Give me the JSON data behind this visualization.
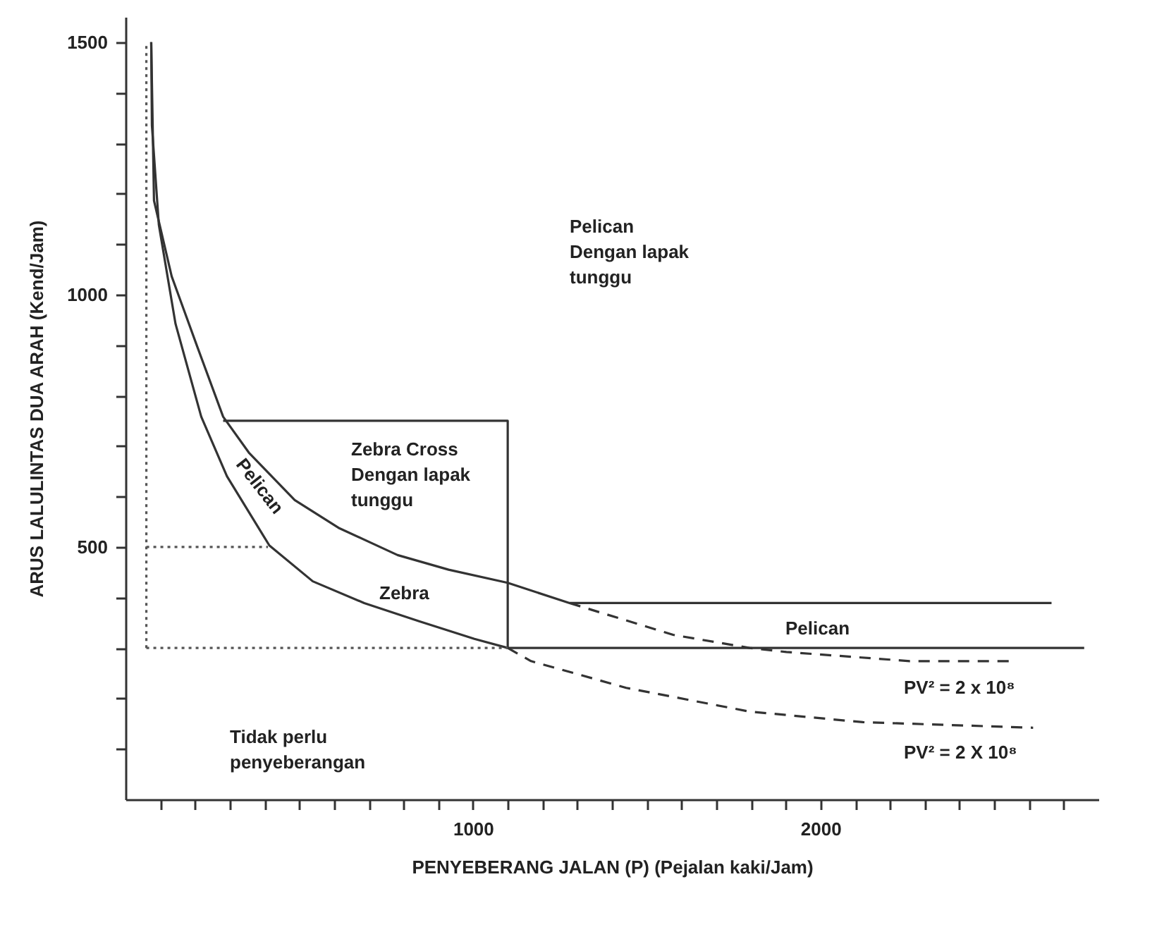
{
  "chart_data": {
    "type": "line",
    "xlabel": "PENYEBERANG JALAN (P) (Pejalan kaki/Jam)",
    "ylabel": "ARUS LALULINTAS DUA ARAH (Kend/Jam)",
    "xlim": [
      0,
      2800
    ],
    "ylim": [
      0,
      1550
    ],
    "xticks": [
      {
        "value": 100,
        "label": null
      },
      {
        "value": 200,
        "label": null
      },
      {
        "value": 300,
        "label": null
      },
      {
        "value": 400,
        "label": null
      },
      {
        "value": 500,
        "label": null
      },
      {
        "value": 600,
        "label": null
      },
      {
        "value": 700,
        "label": null
      },
      {
        "value": 800,
        "label": null
      },
      {
        "value": 900,
        "label": null
      },
      1000,
      {
        "value": 1100,
        "label": null
      },
      {
        "value": 1200,
        "label": null
      },
      {
        "value": 1300,
        "label": null
      },
      {
        "value": 1400,
        "label": null
      },
      {
        "value": 1500,
        "label": null
      },
      {
        "value": 1600,
        "label": null
      },
      {
        "value": 1700,
        "label": null
      },
      {
        "value": 1800,
        "label": null
      },
      {
        "value": 1900,
        "label": null
      },
      2000,
      {
        "value": 2100,
        "label": null
      },
      {
        "value": 2200,
        "label": null
      },
      {
        "value": 2300,
        "label": null
      },
      {
        "value": 2400,
        "label": null
      },
      {
        "value": 2500,
        "label": null
      },
      {
        "value": 2600,
        "label": null
      },
      {
        "value": 2700,
        "label": null
      }
    ],
    "yticks": [
      {
        "value": 100,
        "label": null
      },
      {
        "value": 200,
        "label": null
      },
      {
        "value": 300,
        "label": null
      },
      {
        "value": 400,
        "label": null
      },
      500,
      {
        "value": 600,
        "label": null
      },
      {
        "value": 700,
        "label": null
      },
      {
        "value": 800,
        "label": null
      },
      {
        "value": 900,
        "label": null
      },
      1000,
      {
        "value": 1100,
        "label": null
      },
      {
        "value": 1200,
        "label": null
      },
      {
        "value": 1300,
        "label": null
      },
      {
        "value": 1400,
        "label": null
      },
      1500
    ],
    "grid": false,
    "marker": "none",
    "series": [
      {
        "color": "#333333",
        "line_style": "solid",
        "x": [
          74,
          82,
          133,
          207,
          281,
          355,
          487,
          613,
          783,
          930,
          1100,
          1278,
          2665
        ],
        "values": [
          1500,
          1186,
          1036,
          896,
          758,
          687,
          593,
          538,
          484,
          455,
          429,
          389,
          389
        ]
      },
      {
        "color": "#333333",
        "line_style": "dashed",
        "x": [
          1278,
          1576,
          1796,
          1902,
          2257,
          2555
        ],
        "values": [
          389,
          326,
          300,
          292,
          274,
          274
        ]
      },
      {
        "color": "#333333",
        "line_style": "solid",
        "x": [
          74,
          76,
          96,
          144,
          218,
          292,
          414,
          539,
          687,
          845,
          1004,
          1100,
          2759
        ],
        "values": [
          1500,
          1335,
          1138,
          942,
          758,
          640,
          503,
          432,
          389,
          353,
          318,
          300,
          300
        ]
      },
      {
        "color": "#333333",
        "line_style": "dashed",
        "x": [
          1100,
          1167,
          1441,
          1796,
          2122,
          2612
        ],
        "values": [
          300,
          274,
          221,
          174,
          153,
          142
        ]
      },
      {
        "color": "#333333",
        "line_style": "solid",
        "x": [
          281,
          1100,
          1100
        ],
        "values": [
          750,
          750,
          300
        ]
      },
      {
        "color": "#555555",
        "line_style": "dotted",
        "x": [
          60,
          60
        ],
        "values": [
          300,
          1500
        ]
      },
      {
        "color": "#555555",
        "line_style": "dotted",
        "x": [
          60,
          410
        ],
        "values": [
          500,
          500
        ]
      },
      {
        "color": "#555555",
        "line_style": "dotted",
        "x": [
          60,
          1100
        ],
        "values": [
          300,
          300
        ]
      }
    ],
    "annotations": [
      "Pelican\nDengan lapak\ntunggu",
      "Zebra Cross\nDengan lapak\ntunggu",
      "Zebra",
      "Pelican",
      "Pelican",
      "PV² = 2 x 10⁸",
      "PV² = 2 X 10⁸",
      "Tidak perlu\npenyeberangan"
    ]
  }
}
